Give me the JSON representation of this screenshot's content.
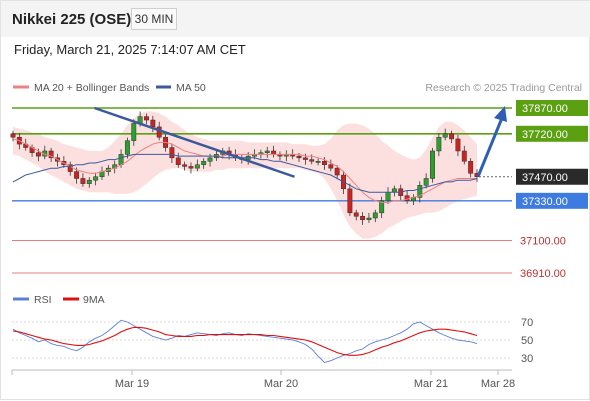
{
  "header": {
    "title": "Nikkei 225 (OSE)",
    "timeframe": "30 MIN",
    "timestamp": "Friday, March 21, 2025 7:14:07 AM CET"
  },
  "legend": {
    "items": [
      {
        "label": "MA 20 + Bollinger Bands",
        "color": "#f08080"
      },
      {
        "label": "MA 50",
        "color": "#3a5a9c"
      }
    ],
    "credit": "Research © 2025 Trading Central"
  },
  "chart_data": [
    {
      "type": "candlestick",
      "title": "Nikkei 225 (OSE)",
      "timeframe": "30 MIN",
      "x_axis": {
        "ticks": [
          "Mar 19",
          "Mar 20",
          "Mar 21",
          "Mar 28"
        ]
      },
      "y_range": [
        36800,
        38000
      ],
      "price_levels": [
        {
          "value": 37870,
          "label": "37870.00",
          "kind": "resistance",
          "color": "#5aa010"
        },
        {
          "value": 37720,
          "label": "37720.00",
          "kind": "resistance",
          "color": "#5aa010"
        },
        {
          "value": 37470,
          "label": "37470.00",
          "kind": "last",
          "color": "#333333"
        },
        {
          "value": 37330,
          "label": "37330.00",
          "kind": "pivot",
          "color": "#3d7be0"
        },
        {
          "value": 37100,
          "label": "37100.00",
          "kind": "support",
          "color": "#e05050"
        },
        {
          "value": 36910,
          "label": "36910.00",
          "kind": "support",
          "color": "#e05050"
        }
      ],
      "trendline": {
        "from": [
          0.165,
          37870
        ],
        "to": [
          0.565,
          37470
        ]
      },
      "projection_arrow": {
        "from": 37470,
        "to": 37870
      },
      "close": [
        37700,
        37660,
        37640,
        37610,
        37590,
        37620,
        37580,
        37560,
        37540,
        37500,
        37460,
        37430,
        37450,
        37470,
        37500,
        37520,
        37540,
        37600,
        37680,
        37780,
        37820,
        37800,
        37760,
        37700,
        37640,
        37580,
        37540,
        37530,
        37520,
        37540,
        37560,
        37580,
        37600,
        37620,
        37600,
        37580,
        37570,
        37590,
        37600,
        37610,
        37620,
        37600,
        37590,
        37600,
        37590,
        37580,
        37570,
        37560,
        37560,
        37540,
        37520,
        37480,
        37400,
        37260,
        37240,
        37220,
        37230,
        37260,
        37330,
        37380,
        37400,
        37360,
        37330,
        37350,
        37420,
        37460,
        37620,
        37700,
        37720,
        37690,
        37620,
        37560,
        37490,
        37470
      ],
      "ma20": [
        37690,
        37680,
        37660,
        37640,
        37620,
        37600,
        37590,
        37570,
        37550,
        37530,
        37510,
        37500,
        37490,
        37490,
        37500,
        37510,
        37520,
        37540,
        37560,
        37590,
        37620,
        37640,
        37660,
        37670,
        37670,
        37660,
        37640,
        37620,
        37610,
        37600,
        37590,
        37590,
        37590,
        37590,
        37600,
        37600,
        37600,
        37600,
        37600,
        37600,
        37600,
        37600,
        37600,
        37600,
        37600,
        37600,
        37590,
        37590,
        37580,
        37570,
        37550,
        37530,
        37500,
        37460,
        37420,
        37380,
        37350,
        37330,
        37320,
        37320,
        37330,
        37330,
        37340,
        37350,
        37360,
        37380,
        37400,
        37420,
        37440,
        37450,
        37460,
        37460,
        37460,
        37460
      ],
      "bb_upper": [
        37760,
        37750,
        37740,
        37730,
        37720,
        37700,
        37690,
        37680,
        37660,
        37650,
        37640,
        37630,
        37620,
        37620,
        37620,
        37640,
        37680,
        37720,
        37770,
        37810,
        37840,
        37850,
        37850,
        37840,
        37820,
        37790,
        37770,
        37740,
        37720,
        37700,
        37690,
        37680,
        37680,
        37680,
        37680,
        37680,
        37680,
        37670,
        37670,
        37670,
        37670,
        37670,
        37670,
        37670,
        37660,
        37660,
        37660,
        37650,
        37650,
        37660,
        37690,
        37740,
        37770,
        37780,
        37780,
        37770,
        37750,
        37720,
        37680,
        37650,
        37620,
        37600,
        37580,
        37570,
        37580,
        37630,
        37700,
        37760,
        37790,
        37790,
        37770,
        37740,
        37700,
        37660
      ],
      "bb_lower": [
        37600,
        37590,
        37570,
        37550,
        37530,
        37500,
        37480,
        37460,
        37440,
        37420,
        37400,
        37390,
        37380,
        37380,
        37380,
        37380,
        37370,
        37370,
        37370,
        37380,
        37400,
        37430,
        37460,
        37490,
        37510,
        37520,
        37520,
        37510,
        37500,
        37500,
        37500,
        37500,
        37510,
        37510,
        37520,
        37520,
        37520,
        37520,
        37520,
        37520,
        37520,
        37520,
        37520,
        37520,
        37520,
        37520,
        37510,
        37500,
        37490,
        37460,
        37400,
        37330,
        37250,
        37180,
        37140,
        37110,
        37110,
        37120,
        37140,
        37170,
        37190,
        37210,
        37230,
        37240,
        37250,
        37260,
        37260,
        37270,
        37290,
        37310,
        37330,
        37340,
        37350,
        37360
      ],
      "ma50": [
        37440,
        37460,
        37480,
        37490,
        37500,
        37510,
        37520,
        37520,
        37530,
        37530,
        37540,
        37540,
        37550,
        37550,
        37560,
        37570,
        37570,
        37580,
        37590,
        37600,
        37600,
        37600,
        37600,
        37600,
        37600,
        37600,
        37590,
        37590,
        37590,
        37590,
        37590,
        37590,
        37590,
        37580,
        37580,
        37580,
        37580,
        37580,
        37580,
        37570,
        37570,
        37560,
        37560,
        37550,
        37540,
        37530,
        37520,
        37510,
        37500,
        37490,
        37480,
        37460,
        37440,
        37420,
        37400,
        37390,
        37380,
        37380,
        37380,
        37380,
        37380,
        37380,
        37390,
        37390,
        37400,
        37410,
        37420,
        37430,
        37440,
        37440,
        37450,
        37450,
        37450,
        37460
      ]
    },
    {
      "type": "line",
      "title": "RSI",
      "y_range": [
        20,
        80
      ],
      "y_ticks": [
        70,
        50,
        30
      ],
      "series": [
        {
          "name": "RSI",
          "color": "#5b7fd6",
          "values": [
            62,
            58,
            55,
            52,
            48,
            50,
            46,
            44,
            43,
            40,
            38,
            42,
            48,
            52,
            55,
            60,
            66,
            72,
            70,
            66,
            62,
            58,
            54,
            52,
            50,
            52,
            55,
            54,
            56,
            58,
            57,
            56,
            55,
            57,
            58,
            56,
            55,
            57,
            56,
            55,
            54,
            53,
            52,
            51,
            50,
            48,
            45,
            40,
            32,
            25,
            27,
            30,
            33,
            35,
            38,
            40,
            45,
            48,
            50,
            52,
            55,
            58,
            62,
            68,
            70,
            66,
            62,
            58,
            55,
            52,
            50,
            49,
            48,
            46
          ]
        },
        {
          "name": "9MA",
          "color": "#e01010",
          "values": [
            60,
            59,
            57,
            55,
            53,
            51,
            50,
            48,
            46,
            45,
            44,
            44,
            45,
            47,
            49,
            52,
            55,
            59,
            62,
            64,
            64,
            63,
            61,
            59,
            56,
            55,
            54,
            54,
            54,
            55,
            55,
            56,
            56,
            56,
            56,
            56,
            56,
            56,
            56,
            56,
            55,
            55,
            54,
            53,
            52,
            51,
            50,
            48,
            45,
            42,
            39,
            36,
            34,
            33,
            33,
            34,
            36,
            39,
            42,
            44,
            47,
            49,
            52,
            55,
            58,
            60,
            61,
            62,
            62,
            61,
            60,
            59,
            57,
            55
          ]
        }
      ]
    }
  ]
}
